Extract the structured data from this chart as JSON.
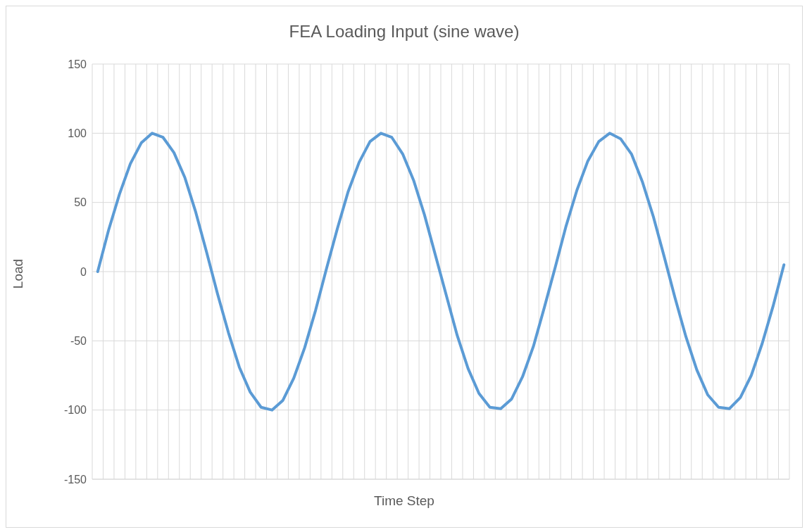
{
  "chart_data": {
    "type": "line",
    "title": "FEA Loading Input (sine wave)",
    "xlabel": "Time Step",
    "ylabel": "Load",
    "categories": [
      null,
      null,
      null,
      null,
      null,
      null,
      null,
      null,
      null,
      null,
      null,
      null,
      null,
      null,
      null,
      null,
      null,
      null,
      null,
      null,
      null,
      null,
      null,
      null,
      null,
      null,
      null,
      null,
      null,
      null,
      null,
      null,
      null,
      null,
      null,
      null,
      null,
      null,
      null,
      null,
      null,
      null,
      null,
      null,
      null,
      null,
      null,
      null,
      null,
      null,
      null,
      null,
      null,
      null,
      null,
      null,
      null,
      null,
      null,
      null,
      null,
      null,
      null,
      null
    ],
    "series": [
      {
        "color": "#5b9bd5",
        "values": [
          0,
          30,
          56,
          78,
          93,
          100,
          97,
          86,
          68,
          43,
          14,
          -16,
          -44,
          -69,
          -87,
          -98,
          -100,
          -93,
          -77,
          -55,
          -28,
          2,
          31,
          58,
          79,
          94,
          100,
          97,
          85,
          66,
          41,
          12,
          -17,
          -46,
          -70,
          -88,
          -98,
          -99,
          -92,
          -76,
          -54,
          -26,
          3,
          33,
          59,
          80,
          94,
          100,
          96,
          85,
          65,
          40,
          11,
          -19,
          -47,
          -71,
          -89,
          -98,
          -99,
          -91,
          -75,
          -52,
          -25,
          5
        ]
      }
    ],
    "ylim": [
      -150,
      150
    ],
    "yticks": [
      -150,
      -100,
      -50,
      0,
      50,
      100,
      150
    ],
    "grid": true,
    "marker": "none",
    "line_style": "solid",
    "legend": false
  }
}
